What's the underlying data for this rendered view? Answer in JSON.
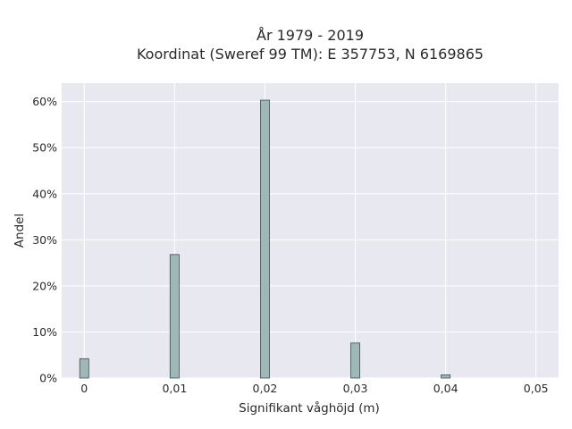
{
  "chart_data": {
    "type": "bar",
    "title": "År 1979 - 2019",
    "subtitle": "Koordinat (Sweref 99 TM): E 357753, N 6169865",
    "xlabel": "Signifikant våghöjd (m)",
    "ylabel": "Andel",
    "x": [
      0,
      0.01,
      0.02,
      0.03,
      0.04
    ],
    "values": [
      0.042,
      0.268,
      0.603,
      0.076,
      0.007
    ],
    "xlim": [
      -0.0025,
      0.0525
    ],
    "ylim": [
      0,
      0.64
    ],
    "x_ticks": [
      0,
      0.01,
      0.02,
      0.03,
      0.04,
      0.05
    ],
    "x_tick_labels": [
      "0",
      "0,01",
      "0,02",
      "0,03",
      "0,04",
      "0,05"
    ],
    "y_ticks": [
      0,
      0.1,
      0.2,
      0.3,
      0.4,
      0.5,
      0.6
    ],
    "y_tick_labels": [
      "0%",
      "10%",
      "20%",
      "30%",
      "40%",
      "50%",
      "60%"
    ],
    "grid": true,
    "colors": {
      "plot_background": "#e8e8f0",
      "grid": "#ffffff",
      "bar_fill": "#9fb7b7",
      "bar_edge": "#3f4f4f"
    }
  }
}
